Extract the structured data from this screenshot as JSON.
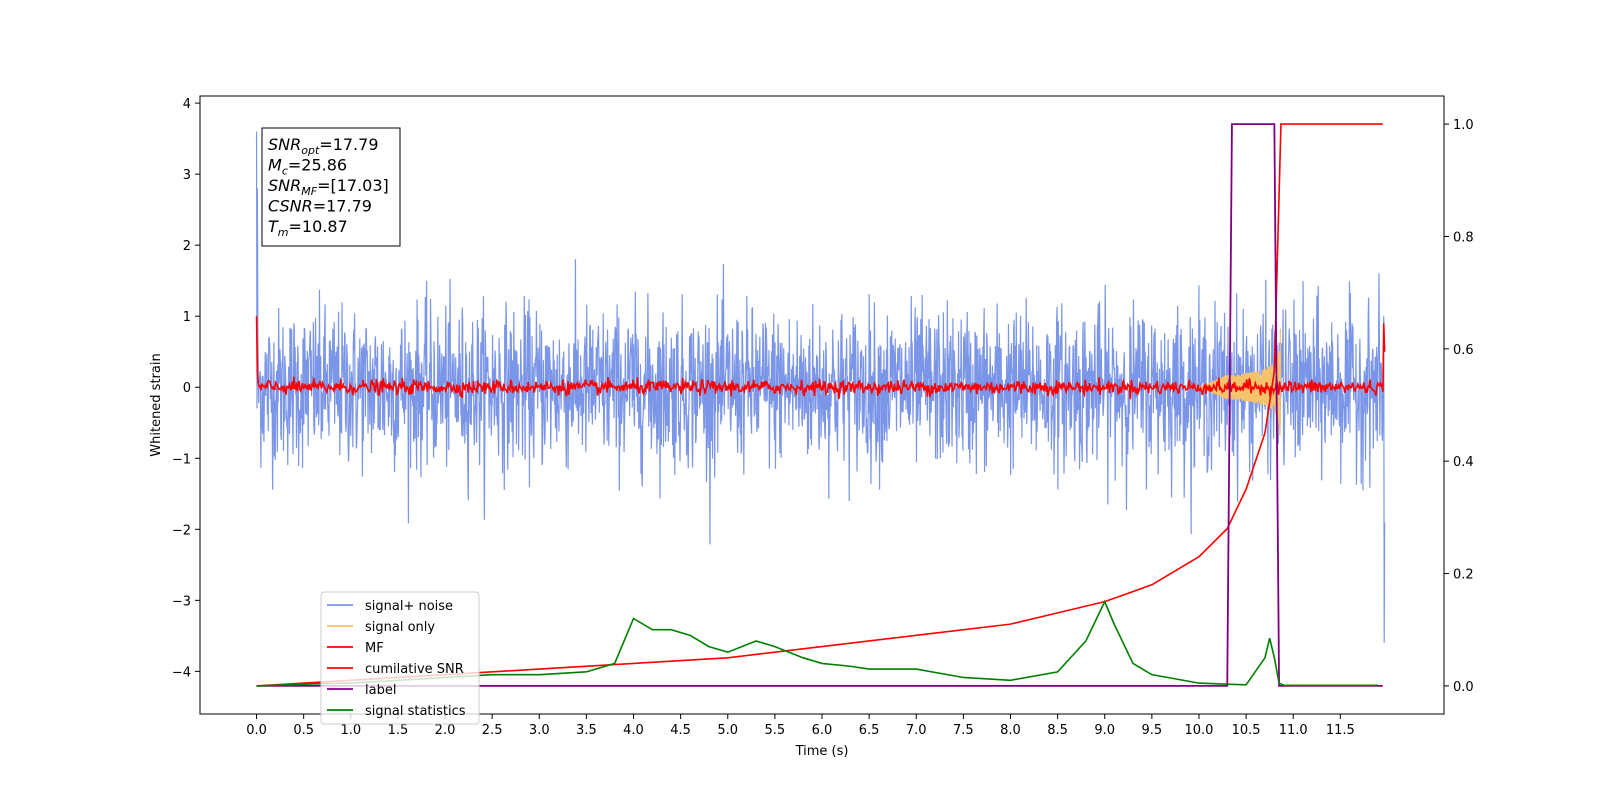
{
  "chart_data": {
    "type": "line",
    "xlabel": "Time (s)",
    "ylabel": "Whitened strain",
    "xlim": [
      -0.6,
      12.6
    ],
    "ylim": [
      -4.6,
      4.1
    ],
    "y2lim": [
      -0.05,
      1.05
    ],
    "x_ticks": [
      "0.0",
      "0.5",
      "1.0",
      "1.5",
      "2.0",
      "2.5",
      "3.0",
      "3.5",
      "4.0",
      "4.5",
      "5.0",
      "5.5",
      "6.0",
      "6.5",
      "7.0",
      "7.5",
      "8.0",
      "8.5",
      "9.0",
      "9.5",
      "10.0",
      "10.5",
      "11.0",
      "11.5"
    ],
    "y_ticks": [
      "4",
      "3",
      "2",
      "1",
      "0",
      "−1",
      "−2",
      "−3",
      "−4"
    ],
    "y2_ticks": [
      "1.0",
      "0.8",
      "0.6",
      "0.4",
      "0.2",
      "0.0"
    ],
    "legend_position": "lower-left",
    "annotation": [
      {
        "name": "SNR",
        "sub": "opt",
        "value": "=17.79"
      },
      {
        "name": "M",
        "sub": "c",
        "value": "=25.86"
      },
      {
        "name": "SNR",
        "sub": "MF",
        "value": "=[17.03]"
      },
      {
        "name": "CSNR",
        "sub": "",
        "value": "=17.79"
      },
      {
        "name": "T",
        "sub": "m",
        "value": "=10.87"
      }
    ],
    "series": [
      {
        "name": "signal+ noise",
        "color": "#7b96e8",
        "axis": "left",
        "description_level": "noise amplitude ~±1.3 across 0–12 s"
      },
      {
        "name": "signal only",
        "color": "#f5c36b",
        "axis": "left",
        "chirp_start": 10.0,
        "chirp_peak_time": 10.87,
        "chirp_peak_amplitude": 0.9
      },
      {
        "name": "MF",
        "color": "#ff0000",
        "axis": "left",
        "level": 0.0
      },
      {
        "name": "cumilative SNR",
        "color": "#ff0000",
        "axis": "right",
        "x": [
          0.0,
          1.0,
          2.0,
          3.0,
          4.0,
          5.0,
          6.0,
          7.0,
          8.0,
          9.0,
          9.5,
          10.0,
          10.3,
          10.5,
          10.7,
          10.8,
          10.87
        ],
        "y": [
          0.0,
          0.01,
          0.02,
          0.03,
          0.04,
          0.05,
          0.07,
          0.09,
          0.11,
          0.15,
          0.18,
          0.23,
          0.28,
          0.35,
          0.45,
          0.56,
          1.0
        ]
      },
      {
        "name": "label",
        "color": "#800080",
        "axis": "right",
        "x": [
          0.0,
          10.3,
          10.35,
          10.8,
          10.85,
          11.0,
          11.95
        ],
        "y": [
          0,
          0,
          1,
          1,
          0,
          0,
          0
        ]
      },
      {
        "name": "signal statistics",
        "color": "#008000",
        "axis": "right",
        "x": [
          0.0,
          0.5,
          1.0,
          1.5,
          2.0,
          2.5,
          3.0,
          3.5,
          3.8,
          4.0,
          4.2,
          4.4,
          4.6,
          4.8,
          5.0,
          5.3,
          5.5,
          5.8,
          6.0,
          6.3,
          6.5,
          7.0,
          7.5,
          8.0,
          8.5,
          8.8,
          9.0,
          9.1,
          9.3,
          9.5,
          10.0,
          10.3,
          10.5,
          10.7,
          10.75,
          10.8,
          10.85,
          10.9,
          11.0,
          11.5,
          11.9
        ],
        "y": [
          0.0,
          0.003,
          0.005,
          0.01,
          0.015,
          0.02,
          0.02,
          0.025,
          0.04,
          0.12,
          0.1,
          0.1,
          0.09,
          0.07,
          0.06,
          0.08,
          0.07,
          0.05,
          0.04,
          0.035,
          0.03,
          0.03,
          0.015,
          0.01,
          0.025,
          0.08,
          0.15,
          0.11,
          0.04,
          0.02,
          0.005,
          0.003,
          0.002,
          0.05,
          0.085,
          0.05,
          0.005,
          0.001,
          0.001,
          0.001,
          0.001
        ]
      }
    ]
  }
}
